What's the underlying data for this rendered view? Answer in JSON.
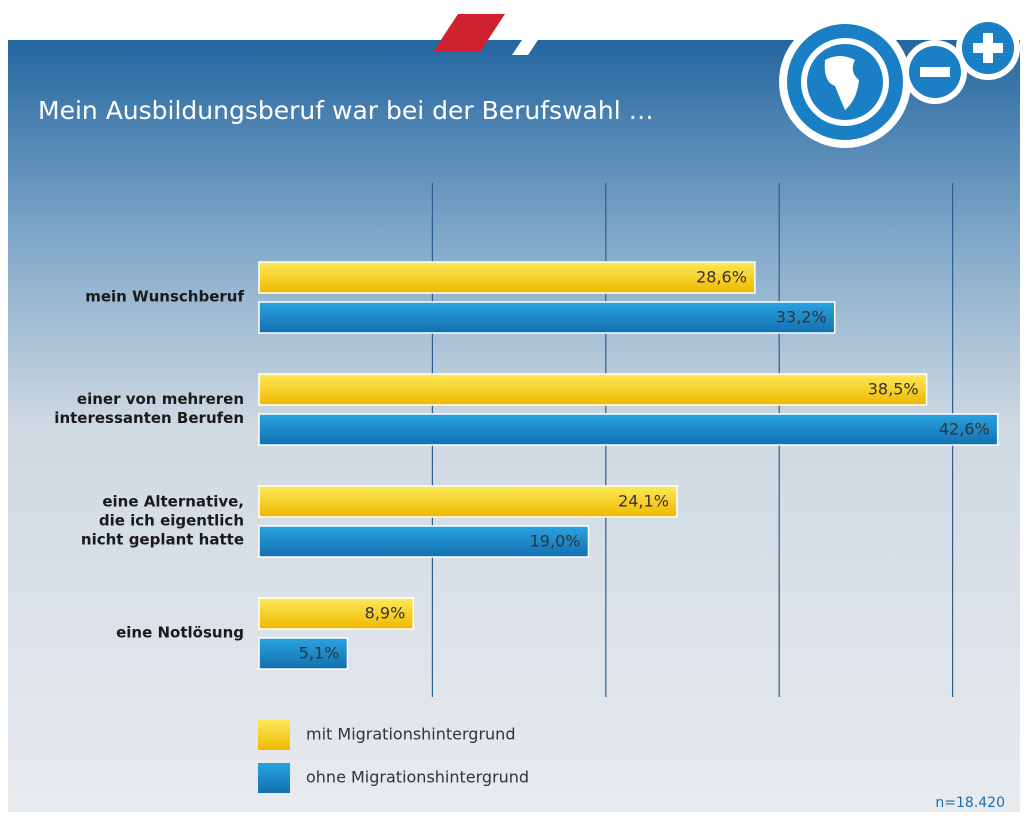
{
  "chart_data": {
    "type": "barh",
    "title": "Mein Ausbildungsberuf war bei der Berufswahl …",
    "categories": [
      "mein Wunschberuf",
      "einer von mehreren\ninteressanten Berufen",
      "eine Alternative,\ndie ich eigentlich\nnicht geplant hatte",
      "eine Notlösung"
    ],
    "series": [
      {
        "name": "mit Migrationshintergrund",
        "color": "#f4c800",
        "values": [
          28.6,
          38.5,
          24.1,
          8.9
        ],
        "value_labels": [
          "28,6%",
          "38,5%",
          "24,1%",
          "8,9%"
        ]
      },
      {
        "name": "ohne Migrationshintergrund",
        "color": "#1787c8",
        "values": [
          33.2,
          42.6,
          19.0,
          5.1
        ],
        "value_labels": [
          "33,2%",
          "42,6%",
          "19,0%",
          "5,1%"
        ]
      }
    ],
    "xlim": [
      0,
      43
    ],
    "xticks": [
      10,
      20,
      30,
      40
    ],
    "grid": true,
    "note": "n=18.420"
  }
}
